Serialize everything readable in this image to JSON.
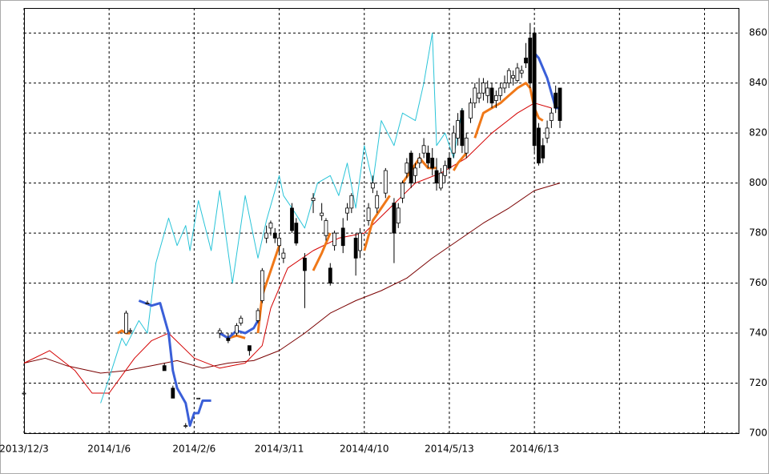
{
  "chart_data": {
    "type": "candlestick",
    "xlim": [
      0,
      168
    ],
    "ylim": [
      700,
      870
    ],
    "xticks": [
      {
        "value": 0,
        "label": "2013/12/3"
      },
      {
        "value": 20,
        "label": "2014/1/6"
      },
      {
        "value": 40,
        "label": "2014/2/6"
      },
      {
        "value": 60,
        "label": "2014/3/11"
      },
      {
        "value": 80,
        "label": "2014/4/10"
      },
      {
        "value": 100,
        "label": "2014/5/13"
      },
      {
        "value": 120,
        "label": "2014/6/13"
      },
      {
        "value": 140,
        "label": null
      },
      {
        "value": 160,
        "label": null
      }
    ],
    "yticks": [
      700,
      720,
      740,
      760,
      780,
      800,
      820,
      840,
      860
    ],
    "grid": true,
    "candles": {
      "x": [
        0,
        24,
        25,
        29,
        33,
        35,
        38,
        41,
        46,
        48,
        50,
        51,
        53,
        55,
        56,
        57,
        58,
        59,
        60,
        61,
        63,
        64,
        66,
        68,
        70,
        71,
        72,
        73,
        75,
        76,
        77,
        78,
        79,
        81,
        82,
        83,
        85,
        87,
        88,
        89,
        90,
        91,
        92,
        93,
        94,
        95,
        96,
        97,
        98,
        99,
        100,
        101,
        102,
        103,
        104,
        105,
        106,
        107,
        108,
        109,
        110,
        111,
        112,
        113,
        114,
        115,
        116,
        117,
        118,
        119,
        120,
        121,
        122,
        123,
        124,
        125,
        126
      ],
      "open": [
        716,
        740,
        741,
        752,
        727,
        718,
        703,
        714,
        740,
        738,
        740,
        744,
        735,
        745,
        753,
        778,
        782,
        780,
        775,
        770,
        790,
        784,
        770,
        793,
        787,
        779,
        766,
        775,
        782,
        788,
        790,
        778,
        773,
        785,
        798,
        790,
        796,
        792,
        784,
        794,
        804,
        812,
        803,
        808,
        812,
        812,
        810,
        805,
        798,
        803,
        810,
        812,
        818,
        829,
        812,
        826,
        832,
        834,
        836,
        835,
        838,
        833,
        835,
        838,
        840,
        842,
        841,
        844,
        850,
        858,
        860,
        822,
        815,
        818,
        825,
        836,
        838
      ],
      "high": [
        717,
        749,
        742,
        753,
        728,
        719,
        704,
        714,
        742,
        740,
        744,
        747,
        735,
        750,
        766,
        783,
        785,
        782,
        780,
        774,
        792,
        786,
        772,
        796,
        792,
        786,
        768,
        781,
        786,
        792,
        796,
        780,
        782,
        792,
        803,
        797,
        806,
        794,
        792,
        801,
        810,
        813,
        808,
        812,
        818,
        815,
        814,
        810,
        806,
        809,
        812,
        823,
        828,
        830,
        820,
        834,
        840,
        842,
        842,
        841,
        840,
        837,
        840,
        843,
        846,
        845,
        848,
        847,
        856,
        864,
        862,
        824,
        818,
        825,
        830,
        839,
        838
      ],
      "low": [
        715,
        740,
        740,
        752,
        725,
        714,
        702,
        714,
        738,
        736,
        739,
        743,
        731,
        744,
        752,
        776,
        779,
        776,
        772,
        768,
        780,
        775,
        750,
        788,
        785,
        777,
        759,
        773,
        772,
        785,
        788,
        763,
        770,
        783,
        796,
        788,
        794,
        768,
        782,
        792,
        802,
        798,
        800,
        806,
        810,
        806,
        803,
        797,
        797,
        800,
        805,
        810,
        815,
        812,
        810,
        824,
        830,
        832,
        833,
        832,
        830,
        830,
        833,
        836,
        838,
        839,
        840,
        842,
        846,
        838,
        812,
        807,
        808,
        816,
        822,
        828,
        822
      ],
      "close": [
        716,
        748,
        741,
        752,
        725,
        714,
        703,
        714,
        741,
        737,
        743,
        746,
        733,
        749,
        765,
        780,
        784,
        778,
        778,
        772,
        781,
        776,
        765,
        794,
        788,
        785,
        760,
        780,
        775,
        790,
        795,
        770,
        780,
        790,
        800,
        795,
        805,
        780,
        790,
        800,
        808,
        800,
        806,
        810,
        815,
        808,
        806,
        800,
        804,
        807,
        806,
        820,
        825,
        815,
        818,
        832,
        838,
        836,
        840,
        838,
        832,
        835,
        838,
        840,
        845,
        843,
        846,
        845,
        848,
        840,
        815,
        808,
        810,
        822,
        828,
        830,
        825
      ]
    },
    "series": [
      {
        "color": "#7a0000",
        "x": [
          0,
          5,
          10,
          18,
          24,
          30,
          36,
          42,
          48,
          54,
          60,
          66,
          72,
          78,
          84,
          90,
          96,
          102,
          108,
          114,
          120,
          126
        ],
        "values": [
          728,
          730,
          727,
          724,
          725,
          727,
          729,
          726,
          728,
          729,
          733,
          740,
          748,
          753,
          757,
          762,
          770,
          777,
          784,
          790,
          797,
          800
        ]
      },
      {
        "color": "#d40000",
        "x": [
          0,
          6,
          12,
          16,
          20,
          26,
          30,
          34,
          40,
          46,
          52,
          56,
          58,
          62,
          68,
          74,
          80,
          86,
          92,
          98,
          104,
          110,
          116,
          120,
          124
        ],
        "values": [
          728,
          733,
          725,
          716,
          716,
          730,
          737,
          740,
          730,
          726,
          728,
          735,
          750,
          766,
          773,
          778,
          780,
          790,
          800,
          804,
          810,
          820,
          828,
          832,
          830
        ]
      },
      {
        "color": "#29c4d8",
        "x": [
          18,
          20,
          23,
          24,
          27,
          29,
          31,
          34,
          36,
          38,
          39,
          41,
          44,
          46,
          49,
          52,
          55,
          57,
          60,
          61,
          63,
          66,
          69,
          72,
          74,
          76,
          78,
          80,
          82,
          84,
          87,
          89,
          92,
          94,
          96,
          97,
          99,
          101,
          103
        ],
        "values": [
          712,
          722,
          738,
          735,
          745,
          740,
          768,
          786,
          775,
          783,
          773,
          793,
          773,
          797,
          760,
          795,
          770,
          785,
          803,
          795,
          790,
          782,
          800,
          803,
          795,
          808,
          790,
          815,
          800,
          825,
          815,
          828,
          825,
          840,
          860,
          815,
          820,
          810,
          830
        ]
      },
      {
        "color": "#f07818",
        "x": [
          22,
          23,
          24,
          25,
          26,
          46,
          48,
          50,
          52,
          53,
          55,
          56,
          58,
          60,
          61,
          68,
          70,
          72,
          73,
          80,
          82,
          84,
          86,
          87,
          89,
          91,
          93,
          95,
          97,
          98,
          101,
          102,
          104,
          105,
          106,
          108,
          110,
          112,
          114,
          116,
          118,
          119,
          120,
          121,
          122
        ],
        "values": [
          740,
          741,
          740,
          740,
          null,
          740,
          738,
          739,
          738,
          null,
          740,
          755,
          765,
          775,
          null,
          765,
          772,
          780,
          null,
          773,
          785,
          790,
          795,
          null,
          800,
          805,
          810,
          806,
          806,
          null,
          805,
          808,
          812,
          null,
          818,
          828,
          830,
          832,
          835,
          838,
          840,
          838,
          830,
          826,
          825
        ]
      },
      {
        "color": "#3a5fd8",
        "x": [
          27,
          30,
          32,
          34,
          35,
          36,
          38,
          39,
          40,
          41,
          42,
          44,
          45,
          46,
          48,
          50,
          52,
          54,
          55,
          56,
          120,
          121,
          123,
          125,
          126
        ],
        "values": [
          753,
          751,
          752,
          740,
          725,
          718,
          712,
          703,
          708,
          708,
          713,
          713,
          null,
          740,
          738,
          741,
          740,
          742,
          745,
          null,
          852,
          850,
          842,
          830,
          830
        ]
      }
    ]
  }
}
